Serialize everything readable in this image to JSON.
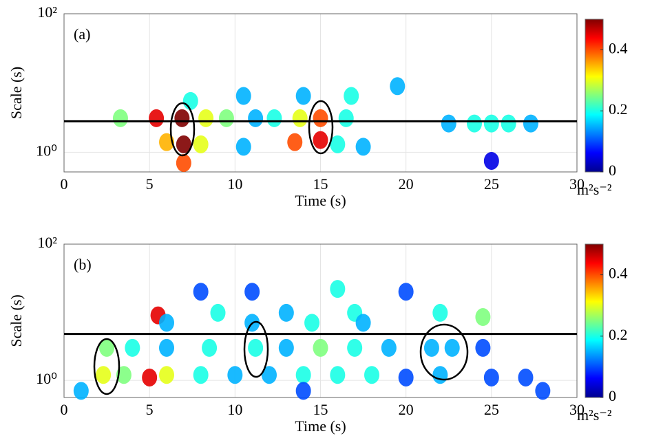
{
  "chart_data": [
    {
      "type": "heatmap",
      "panel_label": "(a)",
      "xlabel": "Time (s)",
      "ylabel": "Scale (s)",
      "log_y": true,
      "grid": true,
      "xlim": [
        0,
        30
      ],
      "xticks": [
        0,
        5,
        10,
        15,
        20,
        25,
        30
      ],
      "ylim": [
        0.52,
        100
      ],
      "yticks": [
        {
          "value": 1,
          "label": "10⁰"
        },
        {
          "value": 100,
          "label": "10²"
        }
      ],
      "reference_line": 2.8,
      "clim": [
        0,
        0.5
      ],
      "cticks": [
        0,
        0.2,
        0.4
      ],
      "colorbar_label": "m²s⁻²",
      "cells": [
        [
          3.3,
          3.1,
          0.25
        ],
        [
          5.4,
          3.1,
          0.45
        ],
        [
          6.9,
          3.1,
          0.5
        ],
        [
          8.3,
          3.1,
          0.3
        ],
        [
          9.5,
          3.1,
          0.25
        ],
        [
          11.2,
          3.1,
          0.15
        ],
        [
          12.3,
          3.1,
          0.2
        ],
        [
          13.8,
          3.1,
          0.3
        ],
        [
          15,
          3.1,
          0.4
        ],
        [
          16.5,
          3.1,
          0.2
        ],
        [
          22.5,
          2.6,
          0.15
        ],
        [
          24,
          2.6,
          0.2
        ],
        [
          25,
          2.6,
          0.2
        ],
        [
          26,
          2.6,
          0.2
        ],
        [
          27.3,
          2.6,
          0.15
        ],
        [
          10.5,
          6.5,
          0.15
        ],
        [
          14,
          6.5,
          0.15
        ],
        [
          16.8,
          6.5,
          0.2
        ],
        [
          19.5,
          9,
          0.15
        ],
        [
          7.4,
          5.5,
          0.2
        ],
        [
          6,
          1.4,
          0.35
        ],
        [
          7,
          1.3,
          0.5
        ],
        [
          8,
          1.3,
          0.3
        ],
        [
          10.5,
          1.2,
          0.15
        ],
        [
          13.5,
          1.4,
          0.4
        ],
        [
          15,
          1.5,
          0.45
        ],
        [
          16,
          1.3,
          0.2
        ],
        [
          17.5,
          1.2,
          0.15
        ],
        [
          7,
          0.7,
          0.4
        ],
        [
          25,
          0.75,
          0.05
        ]
      ]
    },
    {
      "type": "heatmap",
      "panel_label": "(b)",
      "xlabel": "Time (s)",
      "ylabel": "Scale (s)",
      "log_y": true,
      "grid": true,
      "xlim": [
        0,
        30
      ],
      "xticks": [
        0,
        5,
        10,
        15,
        20,
        25,
        30
      ],
      "ylim": [
        0.56,
        100
      ],
      "yticks": [
        {
          "value": 1,
          "label": "10⁰"
        },
        {
          "value": 100,
          "label": "10²"
        }
      ],
      "reference_line": 4.8,
      "clim": [
        0,
        0.5
      ],
      "cticks": [
        0,
        0.2,
        0.4
      ],
      "colorbar_label": "m²s⁻²",
      "cells": [
        [
          8,
          20,
          0.1
        ],
        [
          11,
          20,
          0.1
        ],
        [
          16,
          22,
          0.2
        ],
        [
          20,
          20,
          0.1
        ],
        [
          5.5,
          9,
          0.45
        ],
        [
          9,
          9.8,
          0.2
        ],
        [
          13,
          9.8,
          0.15
        ],
        [
          17,
          9.8,
          0.2
        ],
        [
          22,
          9.8,
          0.2
        ],
        [
          24.5,
          8.5,
          0.25
        ],
        [
          6,
          7,
          0.15
        ],
        [
          11,
          7,
          0.15
        ],
        [
          14.5,
          7,
          0.2
        ],
        [
          17.5,
          7,
          0.15
        ],
        [
          2.5,
          3,
          0.25
        ],
        [
          4,
          3,
          0.2
        ],
        [
          6,
          3,
          0.15
        ],
        [
          8.5,
          3,
          0.2
        ],
        [
          11.2,
          3,
          0.2
        ],
        [
          13,
          3,
          0.15
        ],
        [
          15,
          3,
          0.25
        ],
        [
          17,
          3,
          0.2
        ],
        [
          19,
          3,
          0.15
        ],
        [
          21.5,
          3,
          0.15
        ],
        [
          22.7,
          3,
          0.15
        ],
        [
          24.5,
          3,
          0.1
        ],
        [
          2.3,
          1.2,
          0.3
        ],
        [
          3.5,
          1.2,
          0.25
        ],
        [
          5,
          1.1,
          0.45
        ],
        [
          6,
          1.2,
          0.3
        ],
        [
          8,
          1.2,
          0.2
        ],
        [
          10,
          1.2,
          0.15
        ],
        [
          12,
          1.2,
          0.15
        ],
        [
          14,
          1.2,
          0.2
        ],
        [
          16,
          1.2,
          0.2
        ],
        [
          18,
          1.2,
          0.2
        ],
        [
          20,
          1.1,
          0.1
        ],
        [
          22,
          1.2,
          0.15
        ],
        [
          25,
          1.1,
          0.1
        ],
        [
          27,
          1.1,
          0.1
        ],
        [
          1,
          0.7,
          0.15
        ],
        [
          14,
          0.7,
          0.1
        ],
        [
          28,
          0.7,
          0.1
        ]
      ]
    }
  ]
}
